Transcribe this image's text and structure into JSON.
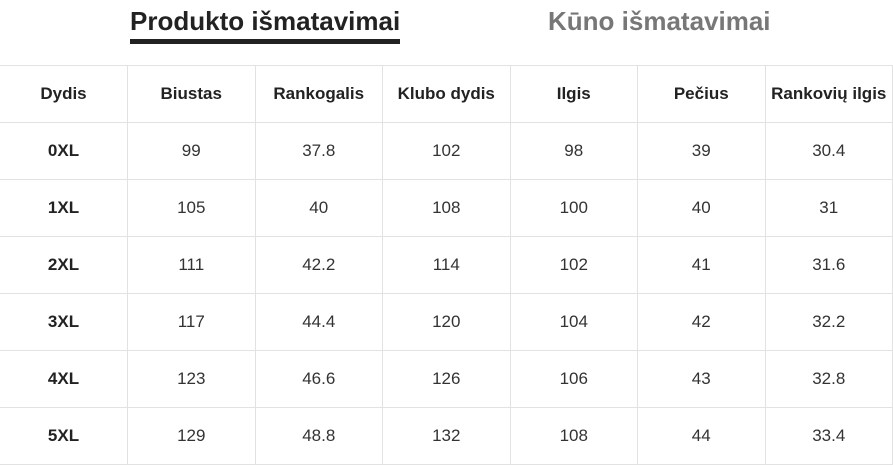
{
  "tabs": [
    {
      "label": "Produkto išmatavimai",
      "active": true
    },
    {
      "label": "Kūno išmatavimai",
      "active": false
    }
  ],
  "table": {
    "headers": [
      "Dydis",
      "Biustas",
      "Rankogalis",
      "Klubo dydis",
      "Ilgis",
      "Pečius",
      "Rankovių ilgis"
    ],
    "rows": [
      [
        "0XL",
        "99",
        "37.8",
        "102",
        "98",
        "39",
        "30.4"
      ],
      [
        "1XL",
        "105",
        "40",
        "108",
        "100",
        "40",
        "31"
      ],
      [
        "2XL",
        "111",
        "42.2",
        "114",
        "102",
        "41",
        "31.6"
      ],
      [
        "3XL",
        "117",
        "44.4",
        "120",
        "104",
        "42",
        "32.2"
      ],
      [
        "4XL",
        "123",
        "46.6",
        "126",
        "106",
        "43",
        "32.8"
      ],
      [
        "5XL",
        "129",
        "48.8",
        "132",
        "108",
        "44",
        "33.4"
      ]
    ]
  }
}
